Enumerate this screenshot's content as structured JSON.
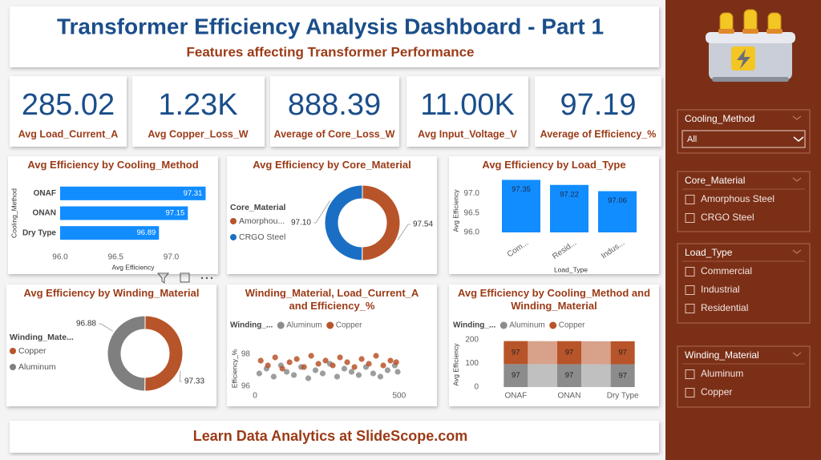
{
  "header": {
    "title": "Transformer Efficiency Analysis Dashboard - Part 1",
    "subtitle": "Features affecting Transformer Performance"
  },
  "kpis": [
    {
      "value": "285.02",
      "label": "Avg Load_Current_A"
    },
    {
      "value": "1.23K",
      "label": "Avg Copper_Loss_W"
    },
    {
      "value": "888.39",
      "label": "Average of Core_Loss_W"
    },
    {
      "value": "11.00K",
      "label": "Avg Input_Voltage_V"
    },
    {
      "value": "97.19",
      "label": "Average of Efficiency_%"
    }
  ],
  "chart_data": [
    {
      "type": "bar",
      "orientation": "horizontal",
      "title": "Avg Efficiency by Cooling_Method",
      "categories": [
        "ONAF",
        "ONAN",
        "Dry Type"
      ],
      "values": [
        97.31,
        97.15,
        96.89
      ],
      "color": "#118dff",
      "xlim": [
        96,
        97.35
      ],
      "xticks": [
        {
          "value": 96,
          "label": "96.0"
        },
        96.5,
        {
          "value": 97,
          "label": "97.0"
        }
      ],
      "x_label": "Avg Efficiency",
      "y_label": "Cooling_Method"
    },
    {
      "type": "donut",
      "title": "Avg Efficiency by Core_Material",
      "legend_title": "Core_Material",
      "categories": [
        "Amorphou...",
        "CRGO Steel"
      ],
      "values": [
        97.54,
        97.1
      ],
      "value_labels": [
        "97.54",
        "97.10"
      ],
      "colors": [
        "#b85429",
        "#1a6fc4"
      ]
    },
    {
      "type": "bar",
      "orientation": "vertical",
      "title": "Avg Efficiency by Load_Type",
      "categories": [
        "Com...",
        "Resid...",
        "Indus..."
      ],
      "values": [
        97.35,
        97.22,
        97.06
      ],
      "color": "#118dff",
      "ylim": [
        96,
        97.4
      ],
      "yticks": [
        {
          "value": 96,
          "label": "96.0"
        },
        96.5,
        {
          "value": 97,
          "label": "97.0"
        }
      ],
      "x_label": "Load_Type",
      "y_label": "Avg Efficiency"
    },
    {
      "type": "donut",
      "title": "Avg Efficiency by Winding_Material",
      "legend_title": "Winding_Mate...",
      "categories": [
        "Copper",
        "Aluminum"
      ],
      "values": [
        97.33,
        96.88
      ],
      "colors": [
        "#b85429",
        "#7f7f7f"
      ]
    },
    {
      "type": "scatter",
      "title": "Winding_Material, Load_Current_A and Efficiency_%",
      "legend_title": "Winding_...",
      "series": [
        {
          "name": "Aluminum",
          "color": "#8c8c8c",
          "x": [
            15,
            40,
            65,
            90,
            110,
            135,
            160,
            185,
            210,
            235,
            260,
            285,
            310,
            335,
            360,
            385,
            410,
            435,
            460,
            485,
            495
          ],
          "values": [
            96.8,
            97.1,
            96.6,
            97.3,
            96.9,
            96.7,
            97.2,
            96.5,
            97.0,
            96.8,
            97.4,
            96.6,
            97.1,
            96.9,
            96.7,
            97.2,
            96.8,
            96.6,
            97.0,
            97.3,
            96.9
          ]
        },
        {
          "name": "Copper",
          "color": "#b85429",
          "x": [
            20,
            45,
            70,
            95,
            120,
            145,
            170,
            195,
            220,
            245,
            270,
            295,
            320,
            345,
            370,
            395,
            420,
            445,
            470,
            490
          ],
          "values": [
            97.6,
            97.3,
            97.8,
            97.1,
            97.5,
            97.7,
            97.2,
            97.9,
            97.4,
            97.6,
            97.3,
            97.8,
            97.5,
            97.2,
            97.7,
            97.4,
            97.9,
            97.3,
            97.6,
            97.5
          ]
        }
      ],
      "xlim": [
        0,
        520
      ],
      "xticks": [
        0,
        500
      ],
      "ylim": [
        95.6,
        98.6
      ],
      "yticks": [
        96,
        98
      ],
      "y_label": "Efficiency_%"
    },
    {
      "type": "ribbon",
      "title": "Avg Efficiency by Cooling_Method and Winding_Material",
      "legend_title": "Winding_...",
      "categories": [
        "ONAF",
        "ONAN",
        "Dry Type"
      ],
      "series": [
        {
          "name": "Aluminum",
          "color": "#8c8c8c",
          "values": [
            97.1,
            96.9,
            96.7
          ],
          "value_labels": [
            "97",
            "97",
            "97"
          ]
        },
        {
          "name": "Copper",
          "color": "#b85429",
          "values": [
            97.45,
            97.35,
            97.05
          ],
          "value_labels": [
            "97",
            "97",
            "97"
          ]
        }
      ],
      "ylim": [
        0,
        200
      ],
      "yticks": [
        0,
        100,
        200
      ],
      "y_label": "Avg Efficiency"
    }
  ],
  "slicers": [
    {
      "title": "Cooling_Method",
      "value": "All"
    },
    {
      "title": "Core_Material",
      "items": [
        "Amorphous Steel",
        "CRGO Steel"
      ]
    },
    {
      "title": "Load_Type",
      "items": [
        "Commercial",
        "Industrial",
        "Residential"
      ]
    },
    {
      "title": "Winding_Material",
      "items": [
        "Aluminum",
        "Copper"
      ]
    }
  ],
  "footer": "Learn Data Analytics at SlideScope.com"
}
